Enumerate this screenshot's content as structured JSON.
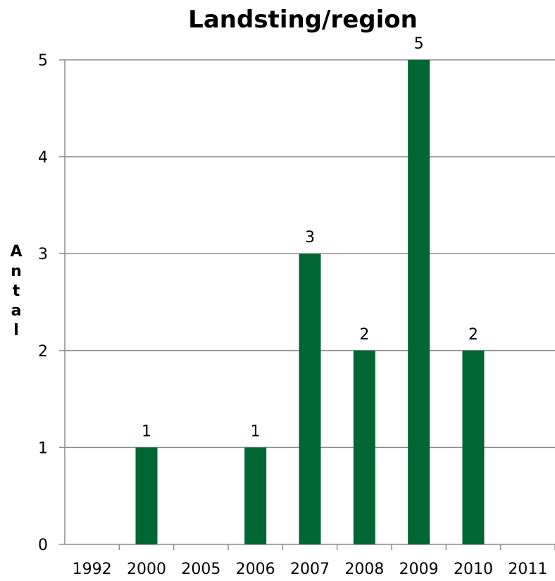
{
  "chart_data": {
    "type": "bar",
    "title": "Landsting/region",
    "xlabel": "",
    "ylabel": "Antal",
    "categories": [
      "1992",
      "2000",
      "2005",
      "2006",
      "2007",
      "2008",
      "2009",
      "2010",
      "2011"
    ],
    "values": [
      0,
      1,
      0,
      1,
      3,
      2,
      5,
      2,
      0
    ],
    "data_labels": [
      "",
      "1",
      "",
      "1",
      "3",
      "2",
      "5",
      "2",
      ""
    ],
    "yticks": [
      "0",
      "1",
      "2",
      "3",
      "4",
      "5"
    ],
    "ylim": [
      0,
      5
    ],
    "grid": true,
    "legend": "none",
    "bar_color": "#006633",
    "grid_color": "#8c8c8c"
  }
}
